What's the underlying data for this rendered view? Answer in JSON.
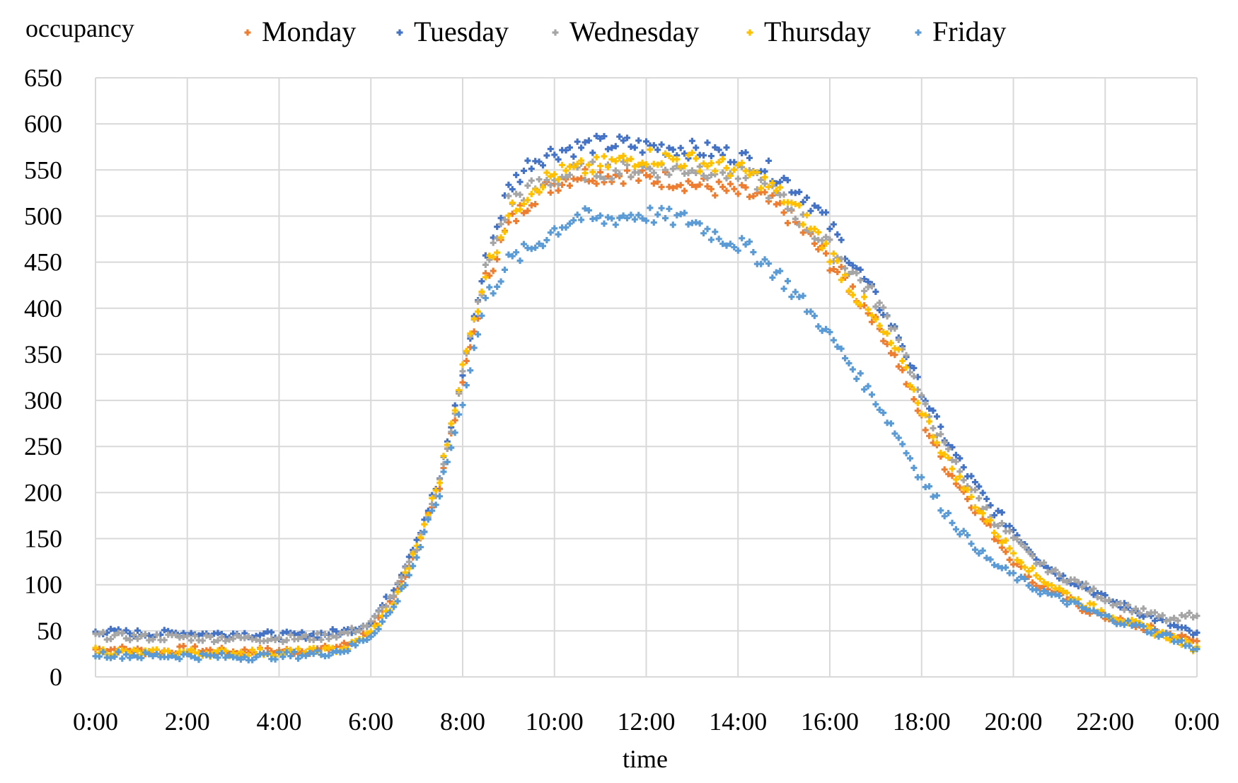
{
  "chart_data": {
    "type": "scatter",
    "title": "",
    "xlabel": "time",
    "ylabel": "occupancy",
    "x_unit": "hours",
    "xlim": [
      0,
      24
    ],
    "ylim": [
      0,
      650
    ],
    "y_step": 50,
    "grid": true,
    "legend_position": "top",
    "marker": "plus",
    "x_tick_values": [
      0,
      2,
      4,
      6,
      8,
      10,
      12,
      14,
      16,
      18,
      20,
      22,
      24
    ],
    "x_tick_labels": [
      "0:00",
      "2:00",
      "4:00",
      "6:00",
      "8:00",
      "10:00",
      "12:00",
      "14:00",
      "16:00",
      "18:00",
      "20:00",
      "22:00",
      "0:00"
    ],
    "y_tick_labels": [
      "0",
      "50",
      "100",
      "150",
      "200",
      "250",
      "300",
      "350",
      "400",
      "450",
      "500",
      "550",
      "600",
      "650"
    ],
    "x": [
      0,
      0.5,
      1,
      1.5,
      2,
      2.5,
      3,
      3.5,
      4,
      4.5,
      5,
      5.5,
      6,
      6.5,
      7,
      7.5,
      8,
      8.5,
      9,
      9.5,
      10,
      10.5,
      11,
      11.5,
      12,
      12.5,
      13,
      13.5,
      14,
      14.5,
      15,
      15.5,
      16,
      16.5,
      17,
      17.5,
      18,
      18.5,
      19,
      19.5,
      20,
      20.5,
      21,
      21.5,
      22,
      22.5,
      23,
      23.5,
      24
    ],
    "series": [
      {
        "name": "Monday",
        "color": "#ED7D31",
        "values": [
          30,
          30,
          28,
          28,
          30,
          28,
          27,
          28,
          28,
          28,
          30,
          35,
          50,
          85,
          140,
          210,
          320,
          430,
          490,
          520,
          535,
          545,
          545,
          545,
          540,
          540,
          535,
          530,
          525,
          520,
          505,
          480,
          450,
          420,
          385,
          340,
          280,
          230,
          195,
          160,
          125,
          100,
          90,
          75,
          65,
          58,
          52,
          45,
          38
        ]
      },
      {
        "name": "Tuesday",
        "color": "#4472C4",
        "values": [
          50,
          48,
          47,
          47,
          48,
          46,
          47,
          46,
          45,
          45,
          47,
          50,
          60,
          95,
          150,
          215,
          330,
          450,
          530,
          560,
          570,
          575,
          578,
          578,
          575,
          575,
          572,
          570,
          565,
          555,
          540,
          520,
          490,
          450,
          410,
          370,
          310,
          260,
          220,
          185,
          160,
          130,
          110,
          100,
          85,
          75,
          65,
          55,
          45
        ]
      },
      {
        "name": "Wednesday",
        "color": "#A5A5A5",
        "values": [
          45,
          44,
          43,
          43,
          43,
          42,
          42,
          42,
          42,
          42,
          44,
          48,
          58,
          90,
          140,
          210,
          330,
          440,
          515,
          530,
          540,
          548,
          550,
          550,
          552,
          550,
          552,
          550,
          545,
          535,
          515,
          490,
          465,
          440,
          410,
          370,
          300,
          250,
          210,
          175,
          150,
          125,
          110,
          100,
          85,
          75,
          68,
          60,
          70
        ]
      },
      {
        "name": "Thursday",
        "color": "#FFC000",
        "values": [
          28,
          27,
          26,
          26,
          27,
          26,
          26,
          27,
          26,
          27,
          28,
          32,
          48,
          80,
          140,
          215,
          335,
          440,
          500,
          530,
          545,
          550,
          555,
          560,
          565,
          562,
          560,
          555,
          550,
          540,
          520,
          495,
          460,
          420,
          385,
          350,
          290,
          240,
          200,
          165,
          135,
          110,
          95,
          80,
          70,
          60,
          50,
          42,
          30
        ]
      },
      {
        "name": "Friday",
        "color": "#5B9BD5",
        "values": [
          25,
          24,
          23,
          23,
          23,
          22,
          22,
          22,
          23,
          24,
          26,
          30,
          45,
          75,
          130,
          200,
          300,
          410,
          450,
          465,
          485,
          500,
          495,
          500,
          502,
          498,
          495,
          480,
          470,
          455,
          430,
          400,
          370,
          335,
          300,
          260,
          215,
          180,
          150,
          125,
          110,
          95,
          85,
          75,
          65,
          58,
          50,
          42,
          28
        ]
      }
    ]
  }
}
